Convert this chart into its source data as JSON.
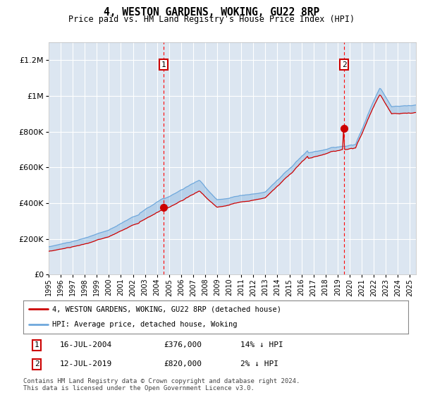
{
  "title": "4, WESTON GARDENS, WOKING, GU22 8RP",
  "subtitle": "Price paid vs. HM Land Registry's House Price Index (HPI)",
  "hpi_label": "HPI: Average price, detached house, Woking",
  "property_label": "4, WESTON GARDENS, WOKING, GU22 8RP (detached house)",
  "sale1_date": "16-JUL-2004",
  "sale1_price": 376000,
  "sale1_note": "14% ↓ HPI",
  "sale2_date": "12-JUL-2019",
  "sale2_price": 820000,
  "sale2_note": "2% ↓ HPI",
  "sale1_x": 2004.54,
  "sale2_x": 2019.54,
  "ylabel_ticks": [
    0,
    200000,
    400000,
    600000,
    800000,
    1000000,
    1200000
  ],
  "ylabel_labels": [
    "£0",
    "£200K",
    "£400K",
    "£600K",
    "£800K",
    "£1M",
    "£1.2M"
  ],
  "ylim": [
    0,
    1300000
  ],
  "xlim_start": 1995.0,
  "xlim_end": 2025.5,
  "hpi_color": "#6fa8dc",
  "property_color": "#cc0000",
  "plot_bg": "#dce6f1",
  "grid_color": "#ffffff",
  "footnote": "Contains HM Land Registry data © Crown copyright and database right 2024.\nThis data is licensed under the Open Government Licence v3.0."
}
